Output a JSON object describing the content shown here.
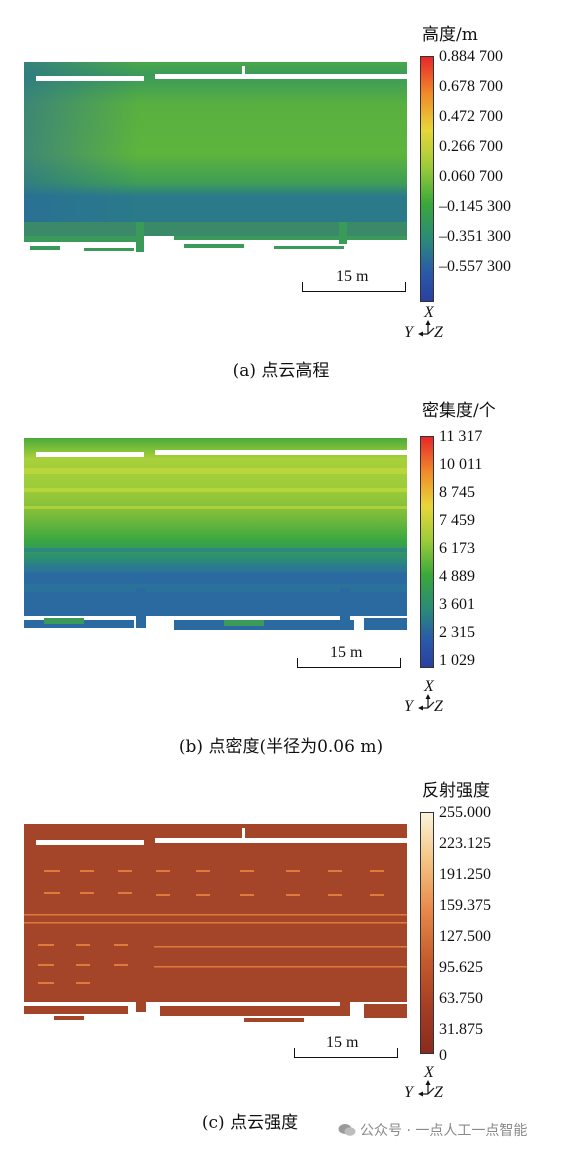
{
  "panels": [
    {
      "id": "a",
      "legend_title": "高度/m",
      "ticks": [
        "0.884 700",
        "0.678 700",
        "0.472 700",
        "0.266 700",
        "0.060 700",
        "–0.145 300",
        "–0.351 300",
        "–0.557 300"
      ],
      "scale_label": "15 m",
      "axis": {
        "x": "X",
        "y": "Y",
        "z": "Z"
      },
      "caption": "(a) 点云高程"
    },
    {
      "id": "b",
      "legend_title": "密集度/个",
      "ticks": [
        "11 317",
        "10 011",
        "8 745",
        "7 459",
        "6 173",
        "4 889",
        "3 601",
        "2 315",
        "1 029"
      ],
      "scale_label": "15 m",
      "axis": {
        "x": "X",
        "y": "Y",
        "z": "Z"
      },
      "caption": "(b) 点密度(半径为0.06 m)"
    },
    {
      "id": "c",
      "legend_title": "反射强度",
      "ticks": [
        "255.000",
        "223.125",
        "191.250",
        "159.375",
        "127.500",
        "95.625",
        "63.750",
        "31.875",
        "0"
      ],
      "scale_label": "15 m",
      "axis": {
        "x": "X",
        "y": "Y",
        "z": "Z"
      },
      "caption": "(c) 点云强度"
    }
  ],
  "colors": {
    "elevation_ramp": [
      "#e8262a",
      "#f08a2a",
      "#e8d63a",
      "#9ccc3a",
      "#3aa83a",
      "#2a8a7a",
      "#2a5aa8",
      "#2a40a0"
    ],
    "density_ramp": [
      "#e8262a",
      "#f08a2a",
      "#e8d63a",
      "#9ccc3a",
      "#3aa83a",
      "#2a8a7a",
      "#2a5aa8",
      "#2a40a0"
    ],
    "intensity_ramp": [
      "#fbf3dc",
      "#f5c98a",
      "#e98a4a",
      "#c45a2c",
      "#a43c24",
      "#8a2a1e"
    ]
  },
  "watermark": "公众号 · 一点人工一点智能"
}
